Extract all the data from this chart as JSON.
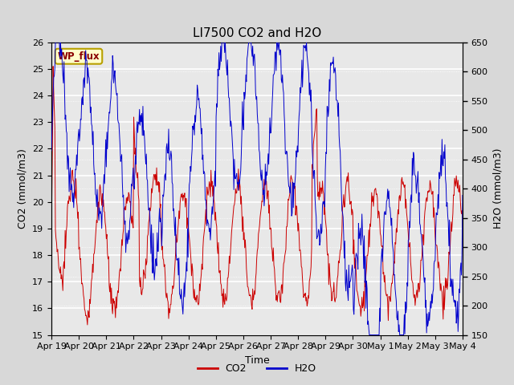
{
  "title": "LI7500 CO2 and H2O",
  "xlabel": "Time",
  "ylabel_left": "CO2 (mmol/m3)",
  "ylabel_right": "H2O (mmol/m3)",
  "co2_ylim": [
    15.0,
    26.0
  ],
  "h2o_ylim": [
    150,
    650
  ],
  "co2_yticks": [
    15.0,
    16.0,
    17.0,
    18.0,
    19.0,
    20.0,
    21.0,
    22.0,
    23.0,
    24.0,
    25.0,
    26.0
  ],
  "h2o_yticks": [
    150,
    200,
    250,
    300,
    350,
    400,
    450,
    500,
    550,
    600,
    650
  ],
  "xtick_labels": [
    "Apr 19",
    "Apr 20",
    "Apr 21",
    "Apr 22",
    "Apr 23",
    "Apr 24",
    "Apr 25",
    "Apr 26",
    "Apr 27",
    "Apr 28",
    "Apr 29",
    "Apr 30",
    "May 1",
    "May 2",
    "May 3",
    "May 4"
  ],
  "co2_color": "#cc0000",
  "h2o_color": "#0000cc",
  "fig_bg_color": "#d8d8d8",
  "plot_bg_color": "#e8e8e8",
  "grid_color": "#ffffff",
  "wp_flux_text": "WP_flux",
  "wp_flux_fg": "#8B0000",
  "wp_flux_bg": "#ffffcc",
  "wp_flux_border": "#b8a000",
  "legend_co2_label": "CO2",
  "legend_h2o_label": "H2O",
  "title_fontsize": 11,
  "axis_label_fontsize": 9,
  "tick_fontsize": 8,
  "legend_fontsize": 9
}
